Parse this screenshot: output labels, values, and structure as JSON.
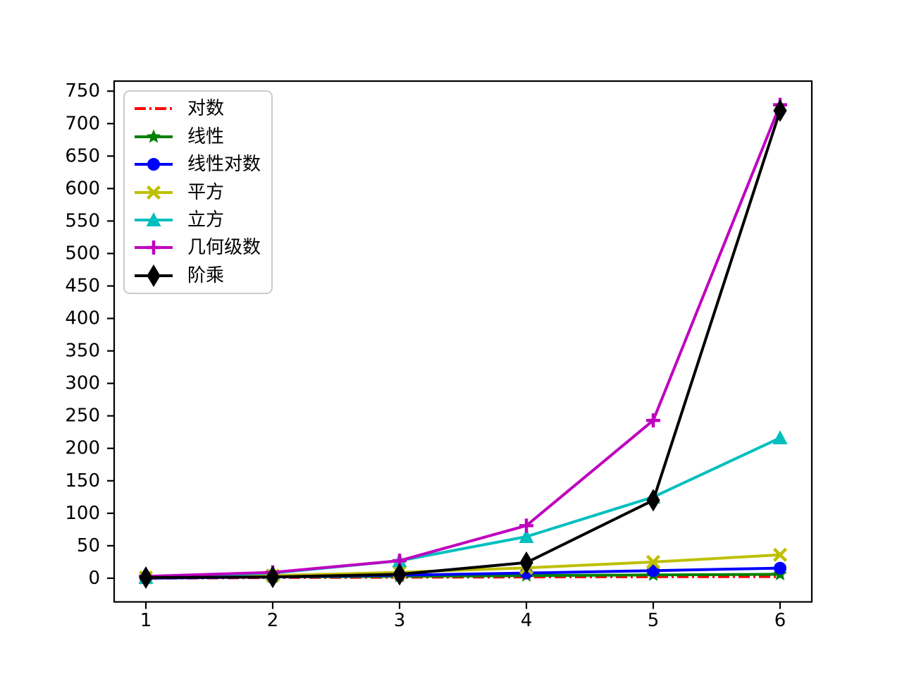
{
  "figure": {
    "background": "#ffffff",
    "axes_edge_color": "#000000",
    "legend_border_color": "#cbcbcb",
    "legend_position": "upper-left"
  },
  "chart_data": {
    "type": "line",
    "x": [
      1,
      2,
      3,
      4,
      5,
      6
    ],
    "xticks": [
      1,
      2,
      3,
      4,
      5,
      6
    ],
    "yticks": [
      0,
      50,
      100,
      150,
      200,
      250,
      300,
      350,
      400,
      450,
      500,
      550,
      600,
      650,
      700,
      750
    ],
    "xlim": [
      0.75,
      6.25
    ],
    "ylim": [
      -36.45,
      765.45
    ],
    "grid": false,
    "title": "",
    "xlabel": "",
    "ylabel": "",
    "series": [
      {
        "id": "log",
        "name": "对数",
        "color": "#ff0000",
        "linestyle": "dashdot",
        "marker": "none",
        "values": [
          0,
          1,
          1.585,
          2,
          2.322,
          2.585
        ]
      },
      {
        "id": "linear",
        "name": "线性",
        "color": "#008000",
        "linestyle": "solid",
        "marker": "star",
        "values": [
          1,
          2,
          3,
          4,
          5,
          6
        ]
      },
      {
        "id": "nlogn",
        "name": "线性对数",
        "color": "#0000ff",
        "linestyle": "solid",
        "marker": "circle",
        "values": [
          0,
          2,
          4.755,
          8,
          11.61,
          15.51
        ]
      },
      {
        "id": "square",
        "name": "平方",
        "color": "#bfbf00",
        "linestyle": "solid",
        "marker": "x",
        "values": [
          1,
          4,
          9,
          16,
          25,
          36
        ]
      },
      {
        "id": "cube",
        "name": "立方",
        "color": "#00bfbf",
        "linestyle": "solid",
        "marker": "triangle-up",
        "values": [
          1,
          8,
          27,
          64,
          125,
          216
        ]
      },
      {
        "id": "geometric",
        "name": "几何级数",
        "color": "#bf00bf",
        "linestyle": "solid",
        "marker": "plus",
        "values": [
          3,
          9,
          27,
          81,
          243,
          729
        ]
      },
      {
        "id": "factorial",
        "name": "阶乘",
        "color": "#000000",
        "linestyle": "solid",
        "marker": "diamond",
        "values": [
          1,
          2,
          6,
          24,
          120,
          720
        ]
      }
    ]
  }
}
